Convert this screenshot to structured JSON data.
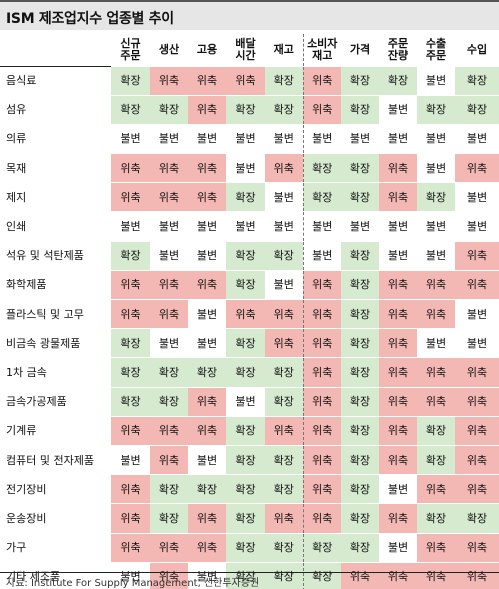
{
  "title": "ISM 제조업지수 업종별 추이",
  "headers": [
    "신규\n주문",
    "생산",
    "고용",
    "배달\n시간",
    "재고",
    "소비자\n재고",
    "가격",
    "주문\n잔량",
    "수출\n주문",
    "수입"
  ],
  "colors": {
    "확장": "#d6ead0",
    "위축": "#f4b8b4",
    "불변": "#ffffff"
  },
  "rows": [
    {
      "label": "음식료",
      "values": [
        "확장",
        "위축",
        "위축",
        "위축",
        "확장",
        "위축",
        "확장",
        "확장",
        "불변",
        "확장"
      ]
    },
    {
      "label": "섬유",
      "values": [
        "확장",
        "확장",
        "위축",
        "확장",
        "확장",
        "위축",
        "확장",
        "불변",
        "확장",
        "확장"
      ]
    },
    {
      "label": "의류",
      "values": [
        "불변",
        "불변",
        "불변",
        "불변",
        "불변",
        "불변",
        "불변",
        "불변",
        "불변",
        "불변"
      ]
    },
    {
      "label": "목재",
      "values": [
        "위축",
        "위축",
        "위축",
        "불변",
        "위축",
        "확장",
        "확장",
        "위축",
        "불변",
        "위축"
      ]
    },
    {
      "label": "제지",
      "values": [
        "위축",
        "위축",
        "위축",
        "확장",
        "불변",
        "확장",
        "확장",
        "위축",
        "확장",
        "불변"
      ]
    },
    {
      "label": "인쇄",
      "values": [
        "불변",
        "불변",
        "불변",
        "불변",
        "불변",
        "불변",
        "불변",
        "불변",
        "불변",
        "불변"
      ]
    },
    {
      "label": "석유 및 석탄제품",
      "values": [
        "확장",
        "불변",
        "불변",
        "확장",
        "확장",
        "불변",
        "확장",
        "불변",
        "불변",
        "위축"
      ]
    },
    {
      "label": "화학제품",
      "values": [
        "위축",
        "위축",
        "위축",
        "확장",
        "불변",
        "위축",
        "확장",
        "위축",
        "위축",
        "위축"
      ]
    },
    {
      "label": "플라스틱 및 고무",
      "values": [
        "위축",
        "위축",
        "불변",
        "위축",
        "위축",
        "위축",
        "확장",
        "위축",
        "위축",
        "불변"
      ]
    },
    {
      "label": "비금속 광물제품",
      "values": [
        "확장",
        "불변",
        "불변",
        "확장",
        "위축",
        "위축",
        "확장",
        "위축",
        "불변",
        "불변"
      ]
    },
    {
      "label": "1차 금속",
      "values": [
        "확장",
        "확장",
        "확장",
        "확장",
        "확장",
        "위축",
        "확장",
        "위축",
        "위축",
        "위축"
      ]
    },
    {
      "label": "금속가공제품",
      "values": [
        "확장",
        "확장",
        "위축",
        "불변",
        "확장",
        "위축",
        "확장",
        "위축",
        "위축",
        "위축"
      ]
    },
    {
      "label": "기계류",
      "values": [
        "위축",
        "위축",
        "위축",
        "확장",
        "위축",
        "위축",
        "확장",
        "위축",
        "확장",
        "위축"
      ]
    },
    {
      "label": "컴퓨터 및 전자제품",
      "values": [
        "불변",
        "위축",
        "불변",
        "확장",
        "확장",
        "위축",
        "확장",
        "위축",
        "확장",
        "위축"
      ]
    },
    {
      "label": "전기장비",
      "values": [
        "위축",
        "확장",
        "확장",
        "확장",
        "확장",
        "위축",
        "확장",
        "불변",
        "위축",
        "위축"
      ]
    },
    {
      "label": "운송장비",
      "values": [
        "위축",
        "확장",
        "위축",
        "확장",
        "위축",
        "위축",
        "확장",
        "위축",
        "확장",
        "확장"
      ]
    },
    {
      "label": "가구",
      "values": [
        "위축",
        "위축",
        "위축",
        "확장",
        "확장",
        "확장",
        "확장",
        "불변",
        "위축",
        "위축"
      ]
    },
    {
      "label": "기타 제조품",
      "values": [
        "불변",
        "위축",
        "불변",
        "확장",
        "확장",
        "확장",
        "위축",
        "위축",
        "위축",
        "위축"
      ]
    }
  ],
  "source": "자료: Institute For Supply Management, 신한투자증권"
}
